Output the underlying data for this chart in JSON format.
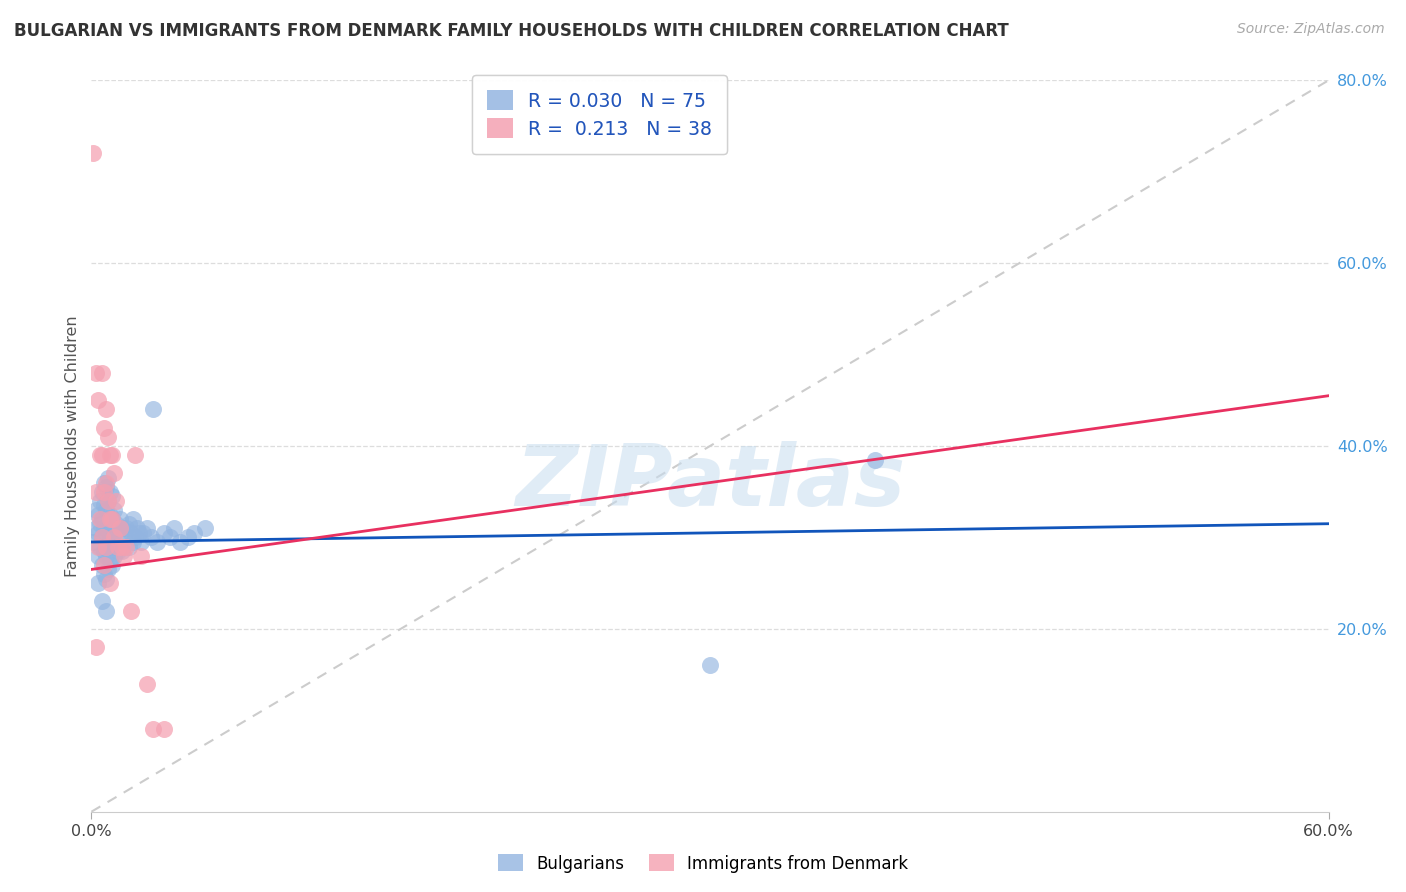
{
  "title": "BULGARIAN VS IMMIGRANTS FROM DENMARK FAMILY HOUSEHOLDS WITH CHILDREN CORRELATION CHART",
  "source": "Source: ZipAtlas.com",
  "ylabel": "Family Households with Children",
  "xlim": [
    0.0,
    0.6
  ],
  "ylim": [
    0.0,
    0.8
  ],
  "xticks": [
    0.0,
    0.6
  ],
  "xtick_labels": [
    "0.0%",
    "60.0%"
  ],
  "yticks": [
    0.2,
    0.4,
    0.6,
    0.8
  ],
  "ytick_labels_right": [
    "20.0%",
    "40.0%",
    "60.0%",
    "80.0%"
  ],
  "blue_color": "#92B4E0",
  "pink_color": "#F4A0B0",
  "blue_line_color": "#1155BB",
  "pink_line_color": "#E83060",
  "ref_line_color": "#CCCCCC",
  "grid_color": "#DDDDDD",
  "legend_R_blue": "0.030",
  "legend_N_blue": "75",
  "legend_R_pink": "0.213",
  "legend_N_pink": "38",
  "legend_label_blue": "Bulgarians",
  "legend_label_pink": "Immigrants from Denmark",
  "watermark": "ZIPatlas",
  "blue_line_y0": 0.295,
  "blue_line_y1": 0.315,
  "pink_line_y0": 0.265,
  "pink_line_y1": 0.455,
  "blue_scatter_x": [
    0.001,
    0.002,
    0.002,
    0.003,
    0.003,
    0.003,
    0.004,
    0.004,
    0.004,
    0.005,
    0.005,
    0.005,
    0.005,
    0.006,
    0.006,
    0.006,
    0.006,
    0.006,
    0.007,
    0.007,
    0.007,
    0.007,
    0.007,
    0.008,
    0.008,
    0.008,
    0.008,
    0.008,
    0.009,
    0.009,
    0.009,
    0.009,
    0.01,
    0.01,
    0.01,
    0.01,
    0.011,
    0.011,
    0.011,
    0.012,
    0.012,
    0.013,
    0.013,
    0.014,
    0.014,
    0.015,
    0.015,
    0.016,
    0.017,
    0.018,
    0.018,
    0.019,
    0.02,
    0.02,
    0.021,
    0.022,
    0.023,
    0.024,
    0.025,
    0.027,
    0.029,
    0.03,
    0.032,
    0.035,
    0.038,
    0.04,
    0.043,
    0.047,
    0.05,
    0.055,
    0.003,
    0.005,
    0.007,
    0.3,
    0.38
  ],
  "blue_scatter_y": [
    0.295,
    0.31,
    0.33,
    0.28,
    0.305,
    0.325,
    0.29,
    0.315,
    0.34,
    0.27,
    0.3,
    0.32,
    0.35,
    0.26,
    0.285,
    0.31,
    0.335,
    0.36,
    0.255,
    0.28,
    0.305,
    0.33,
    0.355,
    0.265,
    0.29,
    0.315,
    0.34,
    0.365,
    0.275,
    0.3,
    0.325,
    0.35,
    0.27,
    0.295,
    0.32,
    0.345,
    0.28,
    0.305,
    0.33,
    0.29,
    0.315,
    0.285,
    0.31,
    0.295,
    0.32,
    0.285,
    0.31,
    0.3,
    0.31,
    0.29,
    0.315,
    0.305,
    0.295,
    0.32,
    0.3,
    0.31,
    0.305,
    0.295,
    0.305,
    0.31,
    0.3,
    0.44,
    0.295,
    0.305,
    0.3,
    0.31,
    0.295,
    0.3,
    0.305,
    0.31,
    0.25,
    0.23,
    0.22,
    0.16,
    0.385
  ],
  "pink_scatter_x": [
    0.001,
    0.002,
    0.002,
    0.003,
    0.003,
    0.004,
    0.004,
    0.005,
    0.005,
    0.005,
    0.006,
    0.006,
    0.006,
    0.007,
    0.007,
    0.007,
    0.008,
    0.008,
    0.009,
    0.009,
    0.009,
    0.01,
    0.01,
    0.011,
    0.011,
    0.012,
    0.013,
    0.014,
    0.015,
    0.016,
    0.017,
    0.019,
    0.021,
    0.024,
    0.027,
    0.03,
    0.035,
    0.002
  ],
  "pink_scatter_y": [
    0.72,
    0.48,
    0.35,
    0.45,
    0.29,
    0.39,
    0.32,
    0.48,
    0.39,
    0.3,
    0.42,
    0.35,
    0.27,
    0.44,
    0.36,
    0.29,
    0.41,
    0.34,
    0.39,
    0.32,
    0.25,
    0.39,
    0.32,
    0.37,
    0.3,
    0.34,
    0.29,
    0.31,
    0.29,
    0.28,
    0.29,
    0.22,
    0.39,
    0.28,
    0.14,
    0.09,
    0.09,
    0.18
  ]
}
